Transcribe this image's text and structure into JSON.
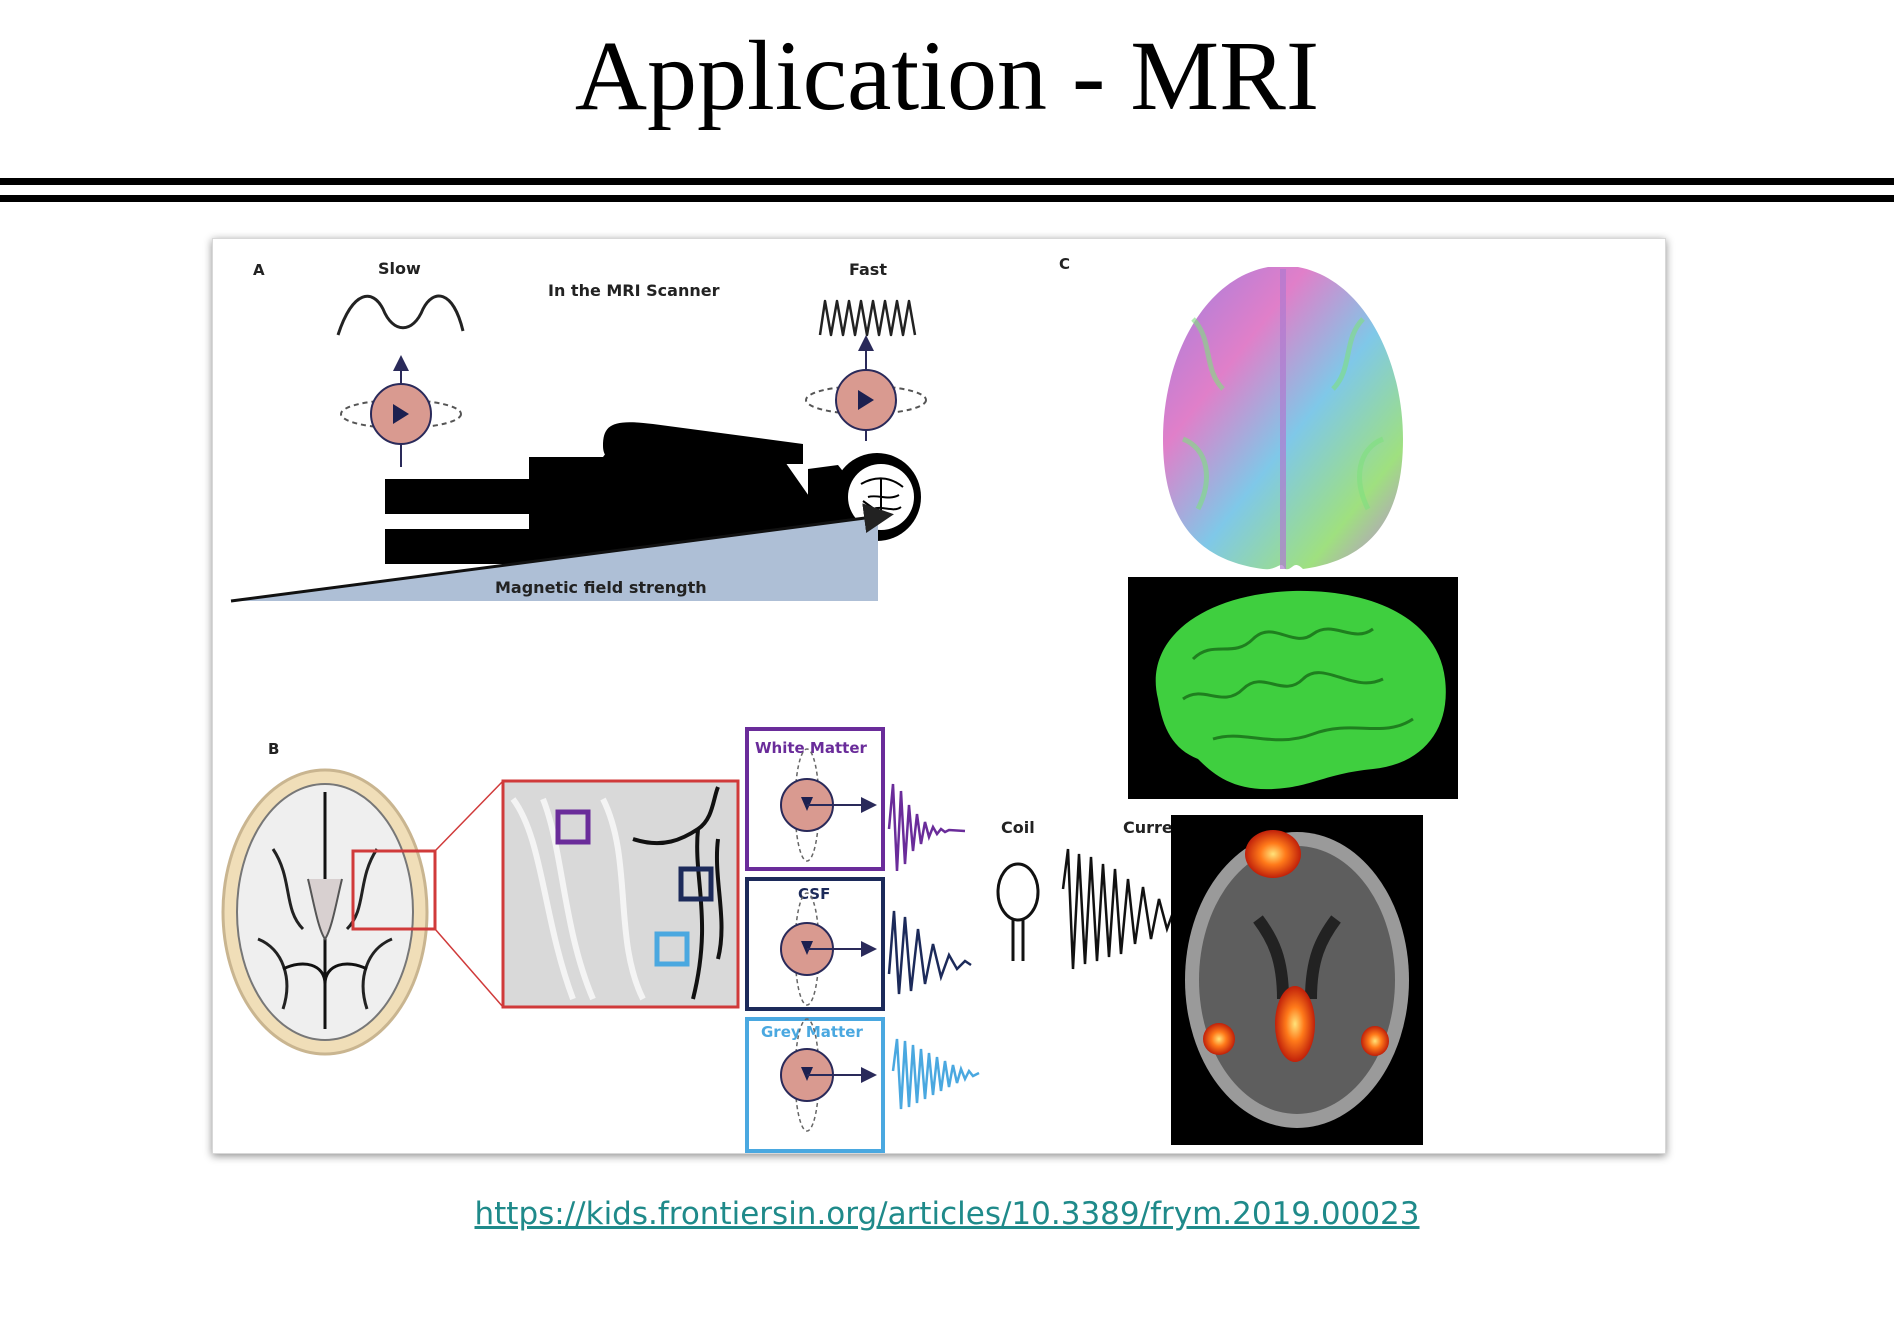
{
  "slide": {
    "title": "Application - MRI",
    "source_url": "https://kids.frontiersin.org/articles/10.3389/frym.2019.00023"
  },
  "figure": {
    "panel_a": {
      "label": "A",
      "slow_label": "Slow",
      "fast_label": "Fast",
      "scanner_label": "In the MRI Scanner",
      "field_label": "Magnetic field strength"
    },
    "panel_b": {
      "label": "B",
      "white_matter": "White Matter",
      "csf": "CSF",
      "grey_matter": "Grey Matter",
      "coil": "Coil",
      "current": "Current"
    },
    "panel_c": {
      "label": "C"
    },
    "colors": {
      "white_matter": "#6a2c9a",
      "csf": "#1c2a5a",
      "grey_matter": "#4aa8e0",
      "spin_fill": "#d99a90",
      "field_ramp": "#aebfd6",
      "zoom_box": "#d03a3a",
      "link": "#1f8a8a"
    }
  }
}
